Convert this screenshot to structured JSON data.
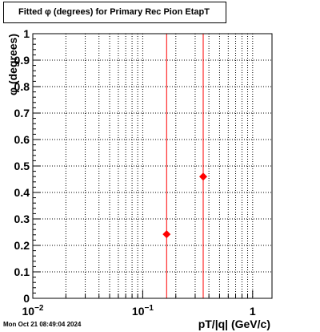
{
  "title": "Fitted φ (degrees) for Primary Rec Pion EtapT",
  "timestamp": "Mon Oct 21 08:49:04 2024",
  "chart_data": {
    "type": "scatter",
    "title": "Fitted φ (degrees) for Primary Rec Pion EtapT",
    "xlabel": "pT/|q| (GeV/c)",
    "ylabel": "φ (degrees)",
    "xscale": "log",
    "xlim": [
      0.01,
      1.5
    ],
    "ylim": [
      0,
      1
    ],
    "grid": true,
    "marker_color": "#ff0000",
    "x_tick_labels": [
      {
        "value": 0.01,
        "base": "10",
        "exp": "−2"
      },
      {
        "value": 0.1,
        "base": "10",
        "exp": "−1"
      },
      {
        "value": 1,
        "base": "1",
        "exp": ""
      }
    ],
    "y_ticks": [
      0,
      0.1,
      0.2,
      0.3,
      0.4,
      0.5,
      0.6,
      0.7,
      0.8,
      0.9,
      1
    ],
    "y_tick_labels": [
      "0",
      "0.1",
      "0.2",
      "0.3",
      "0.4",
      "0.5",
      "0.6",
      "0.7",
      "0.8",
      "0.9",
      "1"
    ],
    "points": [
      {
        "x": 0.165,
        "y": 0.242
      },
      {
        "x": 0.355,
        "y": 0.46
      }
    ],
    "vertical_lines": [
      0.165,
      0.355
    ]
  }
}
